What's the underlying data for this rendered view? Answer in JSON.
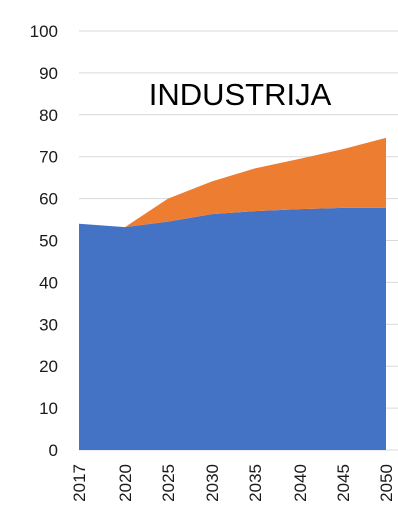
{
  "chart_data": {
    "type": "area",
    "stacked": true,
    "title": "INDUSTRIJA",
    "xlabel": "",
    "ylabel": "",
    "x": [
      "2017",
      "2020",
      "2025",
      "2030",
      "2035",
      "2040",
      "2045",
      "2050"
    ],
    "ylim": [
      0,
      100
    ],
    "yticks": [
      0,
      10,
      20,
      30,
      40,
      50,
      60,
      70,
      80,
      90,
      100
    ],
    "grid": true,
    "legend": "none",
    "series": [
      {
        "color": "#4472c4",
        "values": [
          54,
          53.2,
          54.5,
          56.3,
          57,
          57.5,
          57.8,
          57.8
        ]
      },
      {
        "color": "#ed7d31",
        "values": [
          0,
          0,
          5.5,
          7.8,
          10.2,
          12,
          14,
          16.7
        ]
      }
    ]
  }
}
